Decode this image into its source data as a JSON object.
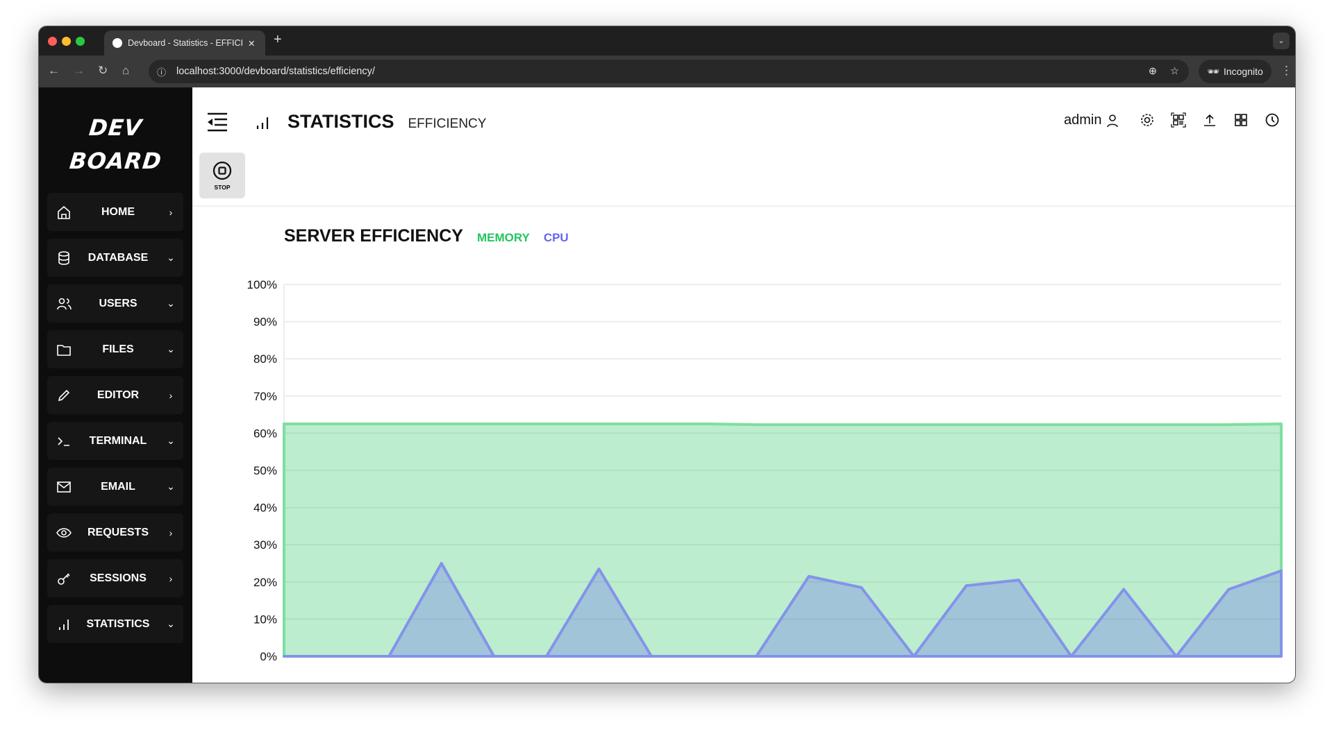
{
  "browser": {
    "tab_title": "Devboard - Statistics - EFFICIENCY",
    "url": "localhost:3000/devboard/statistics/efficiency/",
    "profile": "Incognito"
  },
  "sidebar": {
    "logo": [
      "DEV",
      "BOARD"
    ],
    "items": [
      {
        "label": "HOME",
        "icon": "home-icon",
        "chevron": "right"
      },
      {
        "label": "DATABASE",
        "icon": "database-icon",
        "chevron": "down"
      },
      {
        "label": "USERS",
        "icon": "users-icon",
        "chevron": "down"
      },
      {
        "label": "FILES",
        "icon": "folder-icon",
        "chevron": "down"
      },
      {
        "label": "EDITOR",
        "icon": "pencil-icon",
        "chevron": "right"
      },
      {
        "label": "TERMINAL",
        "icon": "terminal-icon",
        "chevron": "down"
      },
      {
        "label": "EMAIL",
        "icon": "mail-icon",
        "chevron": "down"
      },
      {
        "label": "REQUESTS",
        "icon": "eye-icon",
        "chevron": "right"
      },
      {
        "label": "SESSIONS",
        "icon": "key-icon",
        "chevron": "right"
      },
      {
        "label": "STATISTICS",
        "icon": "bar-chart-icon",
        "chevron": "down"
      }
    ]
  },
  "header": {
    "title": "STATISTICS",
    "subtitle": "EFFICIENCY",
    "user": "admin",
    "stop_label": "STOP"
  },
  "chart_data": {
    "type": "area",
    "title": "SERVER EFFICIENCY",
    "ylim": [
      0,
      100
    ],
    "yticks": [
      "0%",
      "10%",
      "20%",
      "30%",
      "40%",
      "50%",
      "60%",
      "70%",
      "80%",
      "90%",
      "100%"
    ],
    "grid": true,
    "legend_placement": "top-left",
    "series": [
      {
        "name": "MEMORY",
        "color": "#22c55e",
        "values": [
          62.5,
          62.5,
          62.5,
          62.5,
          62.5,
          62.5,
          62.5,
          62.5,
          62.5,
          62.3,
          62.3,
          62.3,
          62.3,
          62.3,
          62.3,
          62.3,
          62.3,
          62.3,
          62.3,
          62.5
        ]
      },
      {
        "name": "CPU",
        "color": "#6366f1",
        "values": [
          0,
          0,
          0,
          25,
          0,
          0,
          23.5,
          0,
          0,
          0,
          21.5,
          18.5,
          0,
          19,
          20.5,
          0,
          18,
          0,
          18,
          23
        ]
      }
    ]
  }
}
